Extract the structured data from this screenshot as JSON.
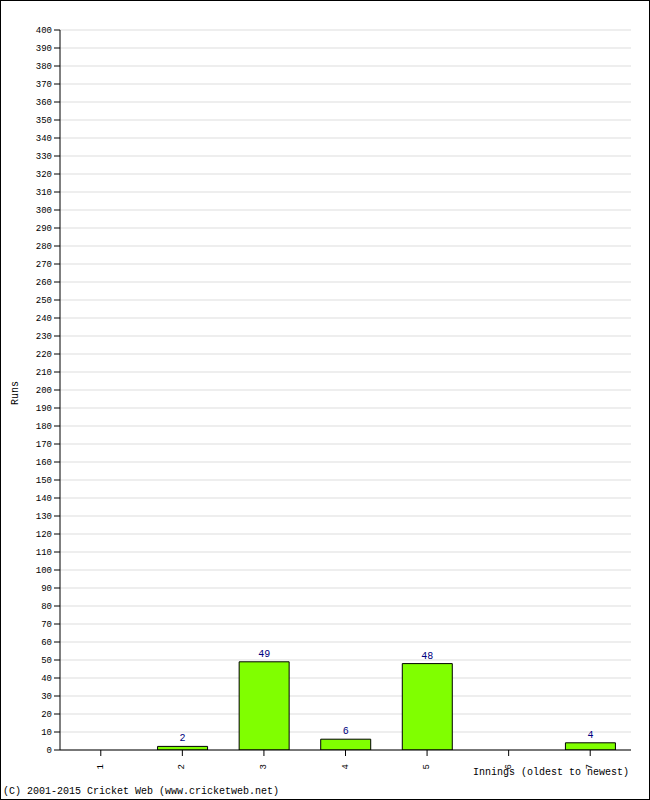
{
  "chart_data": {
    "type": "bar",
    "categories": [
      "1",
      "2",
      "3",
      "4",
      "5",
      "6",
      "7"
    ],
    "values": [
      0,
      2,
      49,
      6,
      48,
      0,
      4
    ],
    "color": "#80ff00",
    "ylim": [
      0,
      400
    ],
    "yticks": [
      0,
      10,
      20,
      30,
      40,
      50,
      60,
      70,
      80,
      90,
      100,
      110,
      120,
      130,
      140,
      150,
      160,
      170,
      180,
      190,
      200,
      210,
      220,
      230,
      240,
      250,
      260,
      270,
      280,
      290,
      300,
      310,
      320,
      330,
      340,
      350,
      360,
      370,
      380,
      390,
      400
    ],
    "grid": true,
    "data_labels": true,
    "x_label": "Innings (oldest to newest)",
    "y_label": "Runs",
    "annotation": "(C) 2001-2015 Cricket Web (www.cricketweb.net)"
  }
}
